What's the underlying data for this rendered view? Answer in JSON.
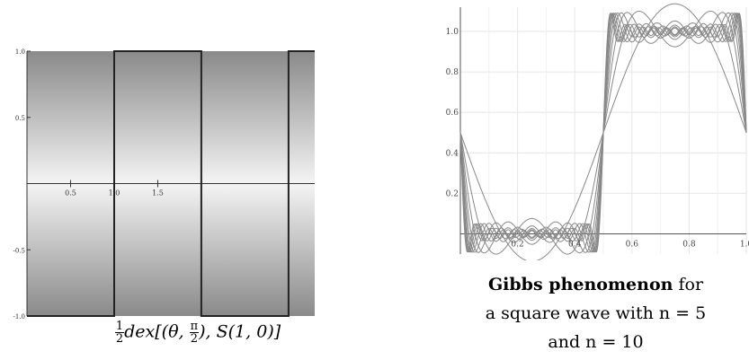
{
  "chart_data": [
    {
      "type": "line",
      "background": "gradient-gray",
      "xlim": [
        0,
        3.3
      ],
      "ylim": [
        -1,
        1
      ],
      "xticks": [
        0.5,
        1.0,
        1.5
      ],
      "xtick_labels": [
        "0.5",
        "1.0",
        "1.5"
      ],
      "yticks": [
        1.0,
        0.5,
        -0.5,
        -1.0
      ],
      "ytick_labels": [
        "1.0",
        "0.5",
        "-0.5",
        "-1.0"
      ],
      "series": [
        {
          "x": [
            0,
            1,
            1,
            2,
            2,
            3,
            3,
            3.3
          ],
          "y": [
            -1,
            -1,
            1,
            1,
            -1,
            -1,
            1,
            1
          ]
        }
      ],
      "caption": {
        "before": "",
        "frac_num": "1",
        "frac_den": "2",
        "mid": "dex[(θ, ",
        "pi_num": "π",
        "pi_den": "2",
        "after": "), S(1, 0)]"
      }
    },
    {
      "type": "line",
      "xlim": [
        0,
        1
      ],
      "ylim": [
        -0.1,
        1.12
      ],
      "xticks": [
        0.2,
        0.4,
        0.6,
        0.8,
        1.0
      ],
      "xtick_labels": [
        "0.2",
        "0.4",
        "0.6",
        "0.8",
        "1.0"
      ],
      "yticks": [
        0.2,
        0.4,
        0.6,
        0.8,
        1.0
      ],
      "ytick_labels": [
        "0.2",
        "0.4",
        "0.6",
        "0.8",
        "1.0"
      ],
      "line_color": "#888888",
      "series_note_n": [
        1,
        2,
        3,
        4,
        5,
        6,
        7,
        8,
        9,
        10
      ],
      "caption": {
        "bold": "Gibbs phenomenon",
        "line1_rest": " for",
        "line2": "a square wave with n = 5",
        "line3": "and n = 10"
      }
    }
  ]
}
